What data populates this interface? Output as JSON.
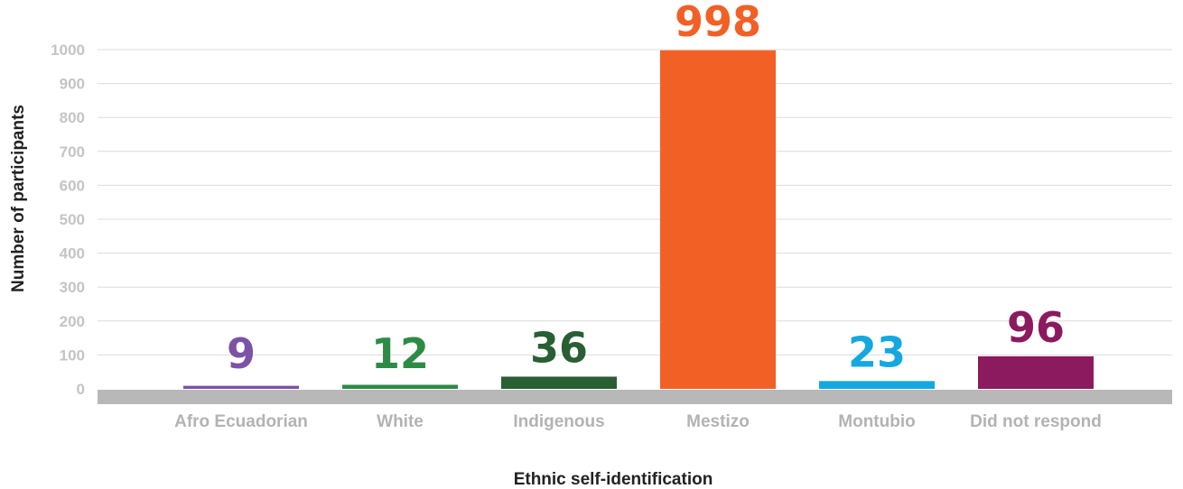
{
  "chart_data": {
    "type": "bar",
    "title": "",
    "xlabel": "Ethnic self-identification",
    "ylabel": "Number of participants",
    "categories": [
      "Afro Ecuadorian",
      "White",
      "Indigenous",
      "Mestizo",
      "Montubio",
      "Did not respond"
    ],
    "values": [
      9,
      12,
      36,
      998,
      23,
      96
    ],
    "data_labels": [
      "9",
      "12",
      "36",
      "998",
      "23",
      "96"
    ],
    "colors": [
      "#7b52a6",
      "#2e8b45",
      "#2a5e33",
      "#f26026",
      "#14a8e0",
      "#8b1a5e"
    ],
    "baseline_color": "#b8b8b8",
    "ylim": [
      0,
      1000
    ],
    "yticks": [
      0,
      100,
      200,
      300,
      400,
      500,
      600,
      700,
      800,
      900,
      1000
    ],
    "grid": true,
    "legend": "none"
  }
}
